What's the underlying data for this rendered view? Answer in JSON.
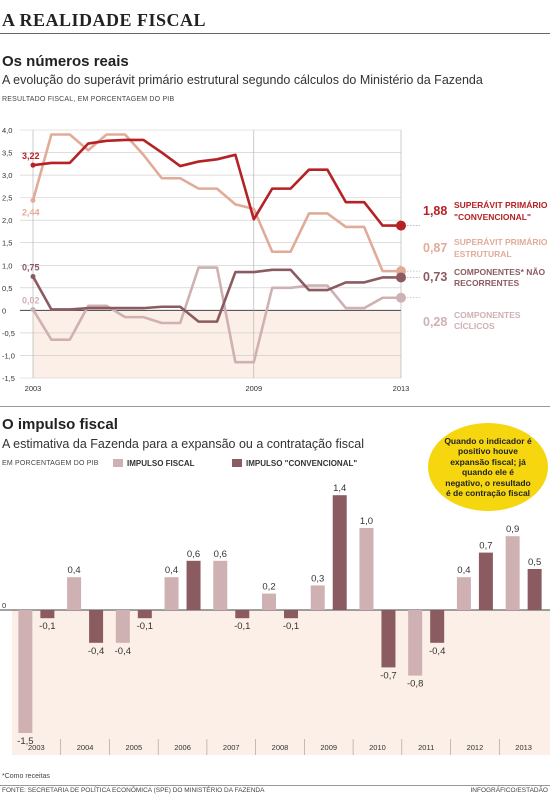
{
  "header": {
    "title": "A REALIDADE FISCAL"
  },
  "section1": {
    "title": "Os números reais",
    "subtitle": "A evolução do superávit primário estrutural segundo cálculos do Ministério da Fazenda",
    "unit": "RESULTADO FISCAL, EM PORCENTAGEM DO PIB"
  },
  "section2": {
    "title": "O impulso fiscal",
    "subtitle": "A estimativa da Fazenda para a expansão ou a contratação fiscal",
    "unit": "EM PORCENTAGEM DO PIB",
    "callout": "Quando o indicador é positivo houve expansão fiscal; já quando ele é negativo, o resultado é de contração fiscal"
  },
  "footnote": "*Como receitas",
  "source": "FONTE: SECRETARIA DE POLÍTICA ECONÔMICA (SPE) DO MINISTÉRIO DA FAZENDA",
  "credit": "INFOGRÁFICO/ESTADÃO",
  "colors": {
    "dark_red": "#b52124",
    "salmon": "#e2ab98",
    "mauve": "#8b5b62",
    "pink_light": "#cfb0b3",
    "bg_negative": "#fcefe7",
    "callout_yellow": "#f5d60f"
  },
  "chart_data": [
    {
      "type": "line",
      "x": [
        2003,
        2003.5,
        2004,
        2004.5,
        2005,
        2005.5,
        2006,
        2006.5,
        2007,
        2007.5,
        2008,
        2008.5,
        2009,
        2009.5,
        2010,
        2010.5,
        2011,
        2011.5,
        2012,
        2012.5,
        2013
      ],
      "x_tick_labels": [
        "2003",
        "2009",
        "2013"
      ],
      "ylim": [
        -1.5,
        4.0
      ],
      "y_ticks": [
        "4,0",
        "3,5",
        "3,0",
        "2,5",
        "2,0",
        "1,5",
        "1,0",
        "0,5",
        "0",
        "-0,5",
        "-1,0",
        "-1,5"
      ],
      "grid": true,
      "series": [
        {
          "name": "SUPERÁVIT PRIMÁRIO \"CONVENCIONAL\"",
          "end_value": "1,88",
          "start_label": "3,22",
          "color": "#b52124",
          "values": [
            3.22,
            3.27,
            3.27,
            3.7,
            3.76,
            3.78,
            3.78,
            3.5,
            3.2,
            3.3,
            3.35,
            3.45,
            2.02,
            2.7,
            2.7,
            3.12,
            3.12,
            2.4,
            2.4,
            1.88,
            1.88
          ]
        },
        {
          "name": "SUPERÁVIT PRIMÁRIO ESTRUTURAL",
          "end_value": "0,87",
          "start_label": "2,44",
          "color": "#e2ab98",
          "values": [
            2.44,
            3.9,
            3.9,
            3.55,
            3.9,
            3.9,
            3.45,
            2.93,
            2.93,
            2.7,
            2.7,
            2.35,
            2.25,
            1.3,
            1.3,
            2.15,
            2.15,
            1.85,
            1.85,
            0.87,
            0.87
          ]
        },
        {
          "name": "COMPONENTES* NÃO RECORRENTES",
          "end_value": "0,73",
          "start_label": "0,75",
          "color": "#8b5b62",
          "values": [
            0.75,
            0.02,
            0.02,
            0.05,
            0.05,
            0.05,
            0.05,
            0.08,
            0.08,
            -0.25,
            -0.25,
            0.85,
            0.85,
            0.9,
            0.9,
            0.45,
            0.45,
            0.62,
            0.62,
            0.73,
            0.73
          ]
        },
        {
          "name": "COMPONENTES CÍCLICOS",
          "end_value": "0,28",
          "start_label": "0,02",
          "color": "#cfb0b3",
          "values": [
            0.02,
            -0.65,
            -0.65,
            0.1,
            0.1,
            -0.15,
            -0.15,
            -0.28,
            -0.28,
            0.95,
            0.95,
            -1.15,
            -1.15,
            0.5,
            0.5,
            0.55,
            0.55,
            0.05,
            0.05,
            0.28,
            0.28
          ]
        }
      ]
    },
    {
      "type": "bar",
      "categories": [
        "2003",
        "2004",
        "2005",
        "2006",
        "2007",
        "2008",
        "2009",
        "2010",
        "2011",
        "2012",
        "2013"
      ],
      "ylim": [
        -1.5,
        1.4
      ],
      "y_ticks": [
        "0"
      ],
      "series": [
        {
          "name": "IMPULSO FISCAL",
          "color": "#cfb0b3",
          "values": [
            -1.5,
            0.4,
            -0.4,
            0.4,
            0.6,
            0.2,
            0.3,
            1.0,
            -0.8,
            0.4,
            0.9
          ],
          "labels": [
            "-1,5",
            "0,4",
            "-0,4",
            "0,4",
            "0,6",
            "0,2",
            "0,3",
            "1,0",
            "-0,8",
            "0,4",
            "0,9"
          ]
        },
        {
          "name": "IMPULSO \"CONVENCIONAL\"",
          "color": "#8b5b62",
          "values": [
            -0.1,
            -0.4,
            -0.1,
            0.6,
            -0.1,
            -0.1,
            1.4,
            -0.7,
            -0.4,
            0.7,
            0.5
          ],
          "labels": [
            "-0,1",
            "-0,4",
            "-0,1",
            "0,6",
            "-0,1",
            "-0,1",
            "1,4",
            "-0,7",
            "-0,4",
            "0,7",
            "0,5"
          ]
        }
      ]
    }
  ]
}
